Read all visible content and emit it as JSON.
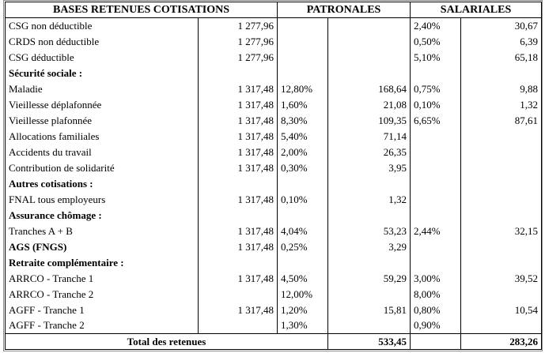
{
  "headers": {
    "bases": "BASES RETENUES COTISATIONS",
    "patronales": "PATRONALES",
    "salariales": "SALARIALES"
  },
  "rows": [
    {
      "label": "CSG non déductible",
      "base": "1 277,96",
      "p_rate": "",
      "p_amount": "",
      "s_rate": "2,40%",
      "s_amount": "30,67"
    },
    {
      "label": "CRDS non déductible",
      "base": "1 277,96",
      "p_rate": "",
      "p_amount": "",
      "s_rate": "0,50%",
      "s_amount": "6,39"
    },
    {
      "label": "CSG déductible",
      "base": "1 277,96",
      "p_rate": "",
      "p_amount": "",
      "s_rate": "5,10%",
      "s_amount": "65,18"
    },
    {
      "label": "Sécurité sociale :",
      "section": true
    },
    {
      "label": "Maladie",
      "base": "1 317,48",
      "p_rate": "12,80%",
      "p_amount": "168,64",
      "s_rate": "0,75%",
      "s_amount": "9,88"
    },
    {
      "label": "Vieillesse déplafonnée",
      "base": "1 317,48",
      "p_rate": "1,60%",
      "p_amount": "21,08",
      "s_rate": "0,10%",
      "s_amount": "1,32"
    },
    {
      "label": "Vieillesse plafonnée",
      "base": "1 317,48",
      "p_rate": "8,30%",
      "p_amount": "109,35",
      "s_rate": "6,65%",
      "s_amount": "87,61"
    },
    {
      "label": "Allocations familiales",
      "base": "1 317,48",
      "p_rate": "5,40%",
      "p_amount": "71,14",
      "s_rate": "",
      "s_amount": ""
    },
    {
      "label": "Accidents du travail",
      "base": "1 317,48",
      "p_rate": "2,00%",
      "p_amount": "26,35",
      "s_rate": "",
      "s_amount": ""
    },
    {
      "label": "Contribution de solidarité",
      "base": "1 317,48",
      "p_rate": "0,30%",
      "p_amount": "3,95",
      "s_rate": "",
      "s_amount": ""
    },
    {
      "label": "Autres cotisations :",
      "section": true
    },
    {
      "label": "FNAL tous employeurs",
      "base": "1 317,48",
      "p_rate": "0,10%",
      "p_amount": "1,32",
      "s_rate": "",
      "s_amount": ""
    },
    {
      "label": "Assurance chômage :",
      "section": true
    },
    {
      "label": "Tranches A + B",
      "base": "1 317,48",
      "p_rate": "4,04%",
      "p_amount": "53,23",
      "s_rate": "2,44%",
      "s_amount": "32,15"
    },
    {
      "label": "AGS (FNGS)",
      "base": "1 317,48",
      "p_rate": "0,25%",
      "p_amount": "3,29",
      "s_rate": "",
      "s_amount": "",
      "bold_label": true
    },
    {
      "label": "Retraite complémentaire :",
      "section": true
    },
    {
      "label": "ARRCO - Tranche 1",
      "base": "1 317,48",
      "p_rate": "4,50%",
      "p_amount": "59,29",
      "s_rate": "3,00%",
      "s_amount": "39,52"
    },
    {
      "label": "ARRCO - Tranche 2",
      "base": "",
      "p_rate": "12,00%",
      "p_amount": "",
      "s_rate": "8,00%",
      "s_amount": ""
    },
    {
      "label": "AGFF - Tranche 1",
      "base": "1 317,48",
      "p_rate": "1,20%",
      "p_amount": "15,81",
      "s_rate": "0,80%",
      "s_amount": "10,54"
    },
    {
      "label": "AGFF - Tranche 2",
      "base": "",
      "p_rate": "1,30%",
      "p_amount": "",
      "s_rate": "0,90%",
      "s_amount": ""
    }
  ],
  "total": {
    "label": "Total des retenues",
    "patronales": "533,45",
    "salariales": "283,26"
  }
}
